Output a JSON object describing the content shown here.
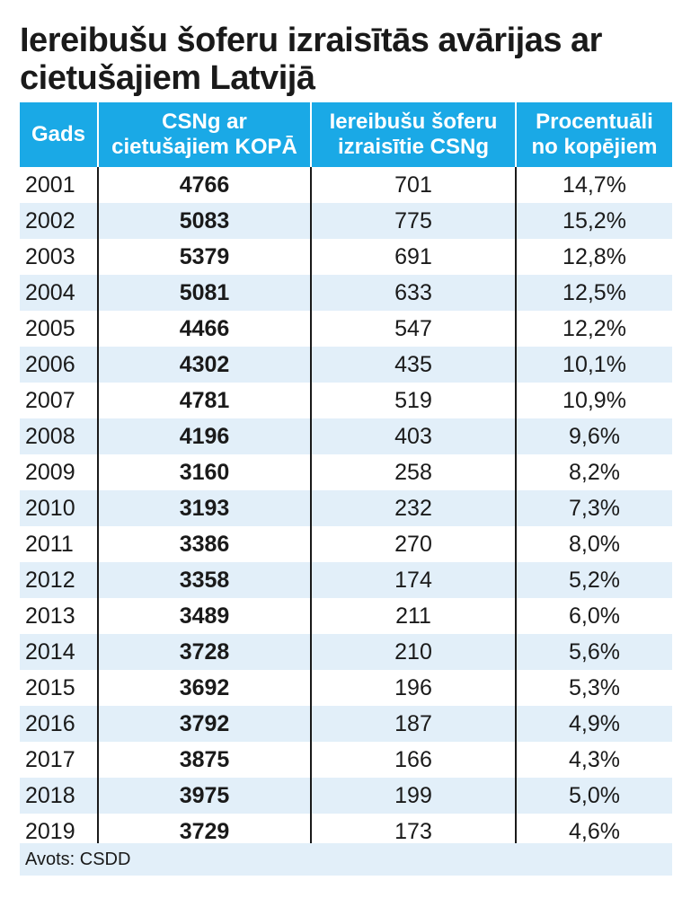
{
  "title": "Iereibušu šoferu izraisītās avārijas ar cietušajiem Latvijā",
  "source": "Avots: CSDD",
  "colors": {
    "header_bg": "#1aa9e6",
    "stripe": "#e2eff9",
    "header_text": "#ffffff"
  },
  "chart_data": {
    "type": "table",
    "title": "Iereibušu šoferu izraisītās avārijas ar cietušajiem Latvijā",
    "columns": [
      "Gads",
      "CSNg ar cietušajiem KOPĀ",
      "Iereibušu šoferu izraisītie CSNg",
      "Procentuāli no kopējiem"
    ],
    "rows": [
      [
        "2001",
        "4766",
        "701",
        "14,7%"
      ],
      [
        "2002",
        "5083",
        "775",
        "15,2%"
      ],
      [
        "2003",
        "5379",
        "691",
        "12,8%"
      ],
      [
        "2004",
        "5081",
        "633",
        "12,5%"
      ],
      [
        "2005",
        "4466",
        "547",
        "12,2%"
      ],
      [
        "2006",
        "4302",
        "435",
        "10,1%"
      ],
      [
        "2007",
        "4781",
        "519",
        "10,9%"
      ],
      [
        "2008",
        "4196",
        "403",
        "9,6%"
      ],
      [
        "2009",
        "3160",
        "258",
        "8,2%"
      ],
      [
        "2010",
        "3193",
        "232",
        "7,3%"
      ],
      [
        "2011",
        "3386",
        "270",
        "8,0%"
      ],
      [
        "2012",
        "3358",
        "174",
        "5,2%"
      ],
      [
        "2013",
        "3489",
        "211",
        "6,0%"
      ],
      [
        "2014",
        "3728",
        "210",
        "5,6%"
      ],
      [
        "2015",
        "3692",
        "196",
        "5,3%"
      ],
      [
        "2016",
        "3792",
        "187",
        "4,9%"
      ],
      [
        "2017",
        "3875",
        "166",
        "4,3%"
      ],
      [
        "2018",
        "3975",
        "199",
        "5,0%"
      ],
      [
        "2019",
        "3729",
        "173",
        "4,6%"
      ]
    ],
    "source": "Avots: CSDD"
  }
}
